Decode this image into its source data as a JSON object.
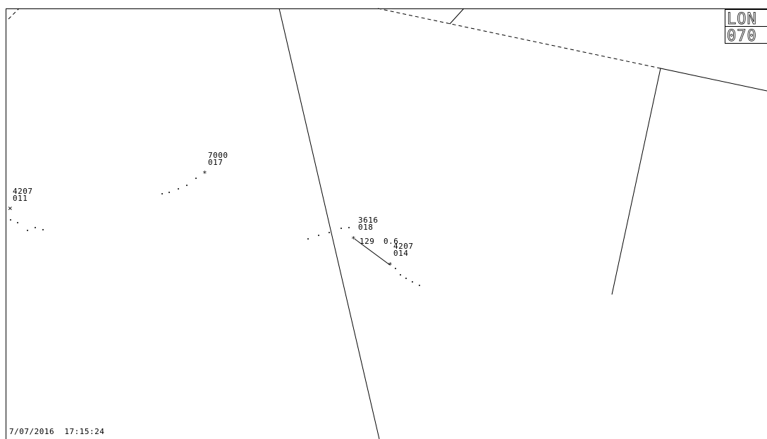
{
  "corner_label": {
    "line1": "LON",
    "line2": "070"
  },
  "timestamp": "7/07/2016  17:15:24",
  "tracks": [
    {
      "id": "track-a",
      "squawk": "4207",
      "flight_level": "011"
    },
    {
      "id": "track-b",
      "squawk": "7000",
      "flight_level": "017"
    },
    {
      "id": "track-c",
      "squawk": "3616",
      "flight_level": "018"
    },
    {
      "id": "track-d",
      "squawk": "4207",
      "flight_level": "014"
    }
  ],
  "range_bearing": {
    "bearing": "129",
    "distance": "0.6"
  },
  "colors": {
    "background": "#ffffff",
    "foreground": "#000000"
  }
}
